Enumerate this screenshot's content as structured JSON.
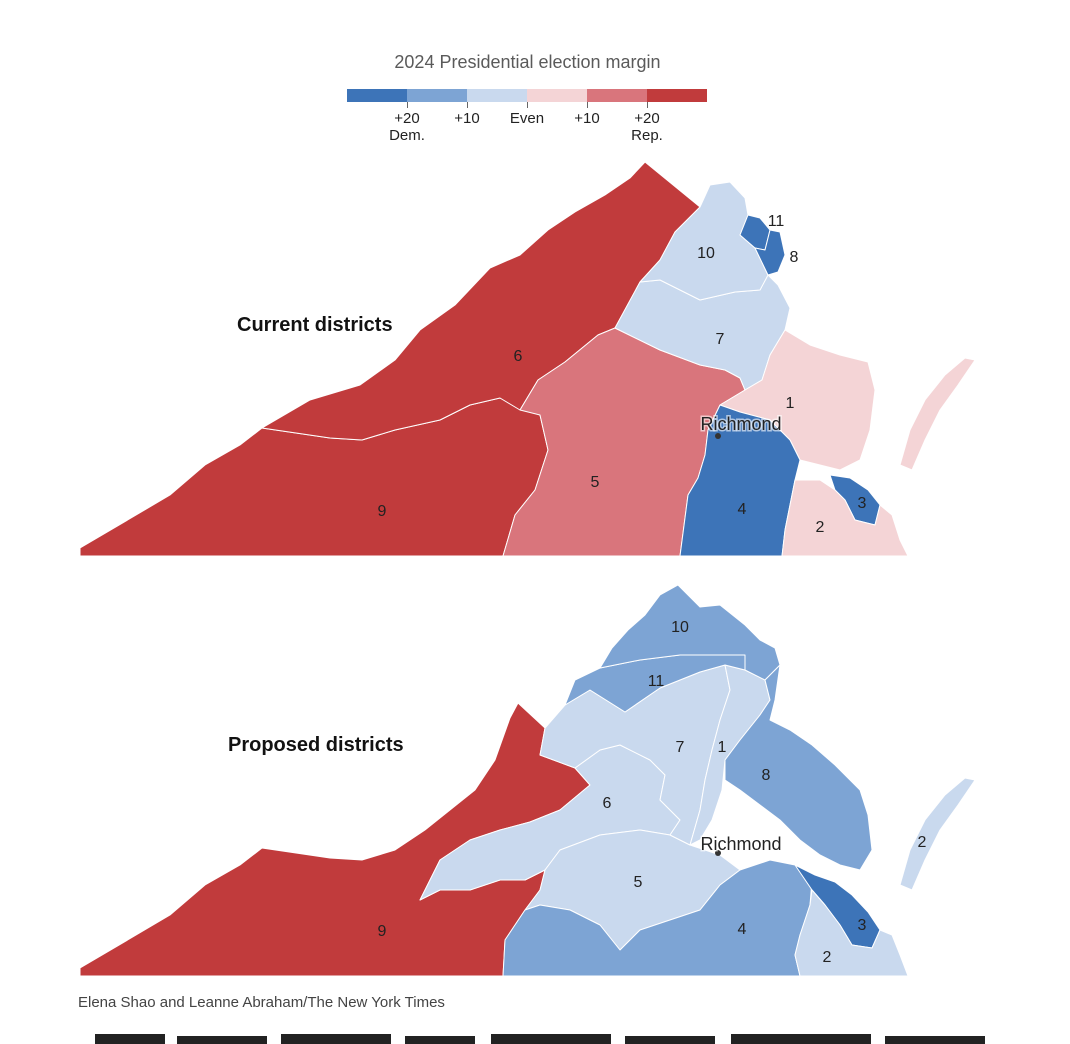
{
  "legend": {
    "title": "2024 Presidential election margin",
    "colors": [
      "#3d74b8",
      "#7da4d4",
      "#c9d9ee",
      "#f4d4d6",
      "#d9757c",
      "#c13b3c"
    ],
    "ticks": [
      {
        "line1": "+20",
        "line2": "Dem."
      },
      {
        "line1": "+10",
        "line2": ""
      },
      {
        "line1": "Even",
        "line2": ""
      },
      {
        "line1": "+10",
        "line2": ""
      },
      {
        "line1": "+20",
        "line2": "Rep."
      }
    ]
  },
  "maps": [
    {
      "title": "Current districts",
      "city_label": "Richmond",
      "districts": [
        {
          "id": "1",
          "label": "1",
          "margin": "rep 0-10",
          "color": "#f4d4d6"
        },
        {
          "id": "2",
          "label": "2",
          "margin": "rep 0-10",
          "color": "#f4d4d6"
        },
        {
          "id": "3",
          "label": "3",
          "margin": "dem 20+",
          "color": "#3d74b8"
        },
        {
          "id": "4",
          "label": "4",
          "margin": "dem 20+",
          "color": "#3d74b8"
        },
        {
          "id": "5",
          "label": "5",
          "margin": "rep 10-20",
          "color": "#d9757c"
        },
        {
          "id": "6",
          "label": "6",
          "margin": "rep 20+",
          "color": "#c13b3c"
        },
        {
          "id": "7",
          "label": "7",
          "margin": "dem 0-10",
          "color": "#c9d9ee"
        },
        {
          "id": "8",
          "label": "8",
          "margin": "dem 20+",
          "color": "#3d74b8"
        },
        {
          "id": "9",
          "label": "9",
          "margin": "rep 20+",
          "color": "#c13b3c"
        },
        {
          "id": "10",
          "label": "10",
          "margin": "dem 0-10",
          "color": "#c9d9ee"
        },
        {
          "id": "11",
          "label": "11",
          "margin": "dem 20+",
          "color": "#3d74b8"
        }
      ]
    },
    {
      "title": "Proposed districts",
      "city_label": "Richmond",
      "districts": [
        {
          "id": "1",
          "label": "1",
          "margin": "dem 0-10",
          "color": "#c9d9ee"
        },
        {
          "id": "2",
          "label": "2",
          "margin": "dem 0-10",
          "color": "#c9d9ee"
        },
        {
          "id": "3",
          "label": "3",
          "margin": "dem 20+",
          "color": "#3d74b8"
        },
        {
          "id": "4",
          "label": "4",
          "margin": "dem 10-20",
          "color": "#7da4d4"
        },
        {
          "id": "5",
          "label": "5",
          "margin": "dem 0-10",
          "color": "#c9d9ee"
        },
        {
          "id": "6",
          "label": "6",
          "margin": "dem 0-10",
          "color": "#c9d9ee"
        },
        {
          "id": "7",
          "label": "7",
          "margin": "dem 0-10",
          "color": "#c9d9ee"
        },
        {
          "id": "8",
          "label": "8",
          "margin": "dem 10-20",
          "color": "#7da4d4"
        },
        {
          "id": "9",
          "label": "9",
          "margin": "rep 20+",
          "color": "#c13b3c"
        },
        {
          "id": "10",
          "label": "10",
          "margin": "dem 10-20",
          "color": "#7da4d4"
        },
        {
          "id": "11",
          "label": "11",
          "margin": "dem 10-20",
          "color": "#7da4d4"
        }
      ]
    }
  ],
  "credit": "Elena Shao and Leanne Abraham/The New York Times"
}
